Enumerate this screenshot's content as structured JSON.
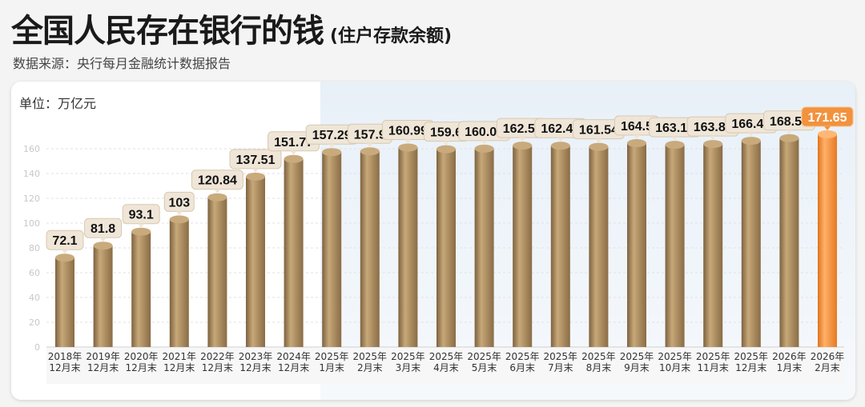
{
  "title": "全国人民存在银行的钱",
  "subtitle": "(住户存款余额)",
  "source": "数据来源：央行每月金融统计数据报告",
  "chart_data": {
    "type": "bar",
    "unit_label": "单位：万亿元",
    "categories": [
      [
        "2018年",
        "12月末"
      ],
      [
        "2019年",
        "12月末"
      ],
      [
        "2020年",
        "12月末"
      ],
      [
        "2021年",
        "12月末"
      ],
      [
        "2022年",
        "12月末"
      ],
      [
        "2023年",
        "12月末"
      ],
      [
        "2024年",
        "12月末"
      ],
      [
        "2025年",
        "1月末"
      ],
      [
        "2025年",
        "2月末"
      ],
      [
        "2025年",
        "3月末"
      ],
      [
        "2025年",
        "4月末"
      ],
      [
        "2025年",
        "5月末"
      ],
      [
        "2025年",
        "6月末"
      ],
      [
        "2025年",
        "7月末"
      ],
      [
        "2025年",
        "8月末"
      ],
      [
        "2025年",
        "9月末"
      ],
      [
        "2025年",
        "10月末"
      ],
      [
        "2025年",
        "11月末"
      ],
      [
        "2025年",
        "12月末"
      ],
      [
        "2026年",
        "1月末"
      ],
      [
        "2026年",
        "2月末"
      ]
    ],
    "values": [
      72.1,
      81.8,
      93.1,
      103,
      120.84,
      137.51,
      151.77,
      157.29,
      157.9,
      160.99,
      159.6,
      160.07,
      162.54,
      162.43,
      161.54,
      164.5,
      163.16,
      163.83,
      166.41,
      168.54,
      171.65
    ],
    "labels": [
      "72.1",
      "81.8",
      "93.1",
      "103",
      "120.84",
      "137.51",
      "151.77",
      "157.29",
      "157.9",
      "160.99",
      "159.6",
      "160.07",
      "162.54",
      "162.43",
      "161.54",
      "164.5",
      "163.16",
      "163.83",
      "166.41",
      "168.54",
      "171.65"
    ],
    "yticks": [
      0,
      20,
      40,
      60,
      80,
      100,
      120,
      140,
      160
    ],
    "ylim": [
      0,
      175
    ],
    "grid": true,
    "colors": {
      "bar": "#a8875a",
      "highlight": "#f08a30"
    },
    "highlight_index": 20
  }
}
